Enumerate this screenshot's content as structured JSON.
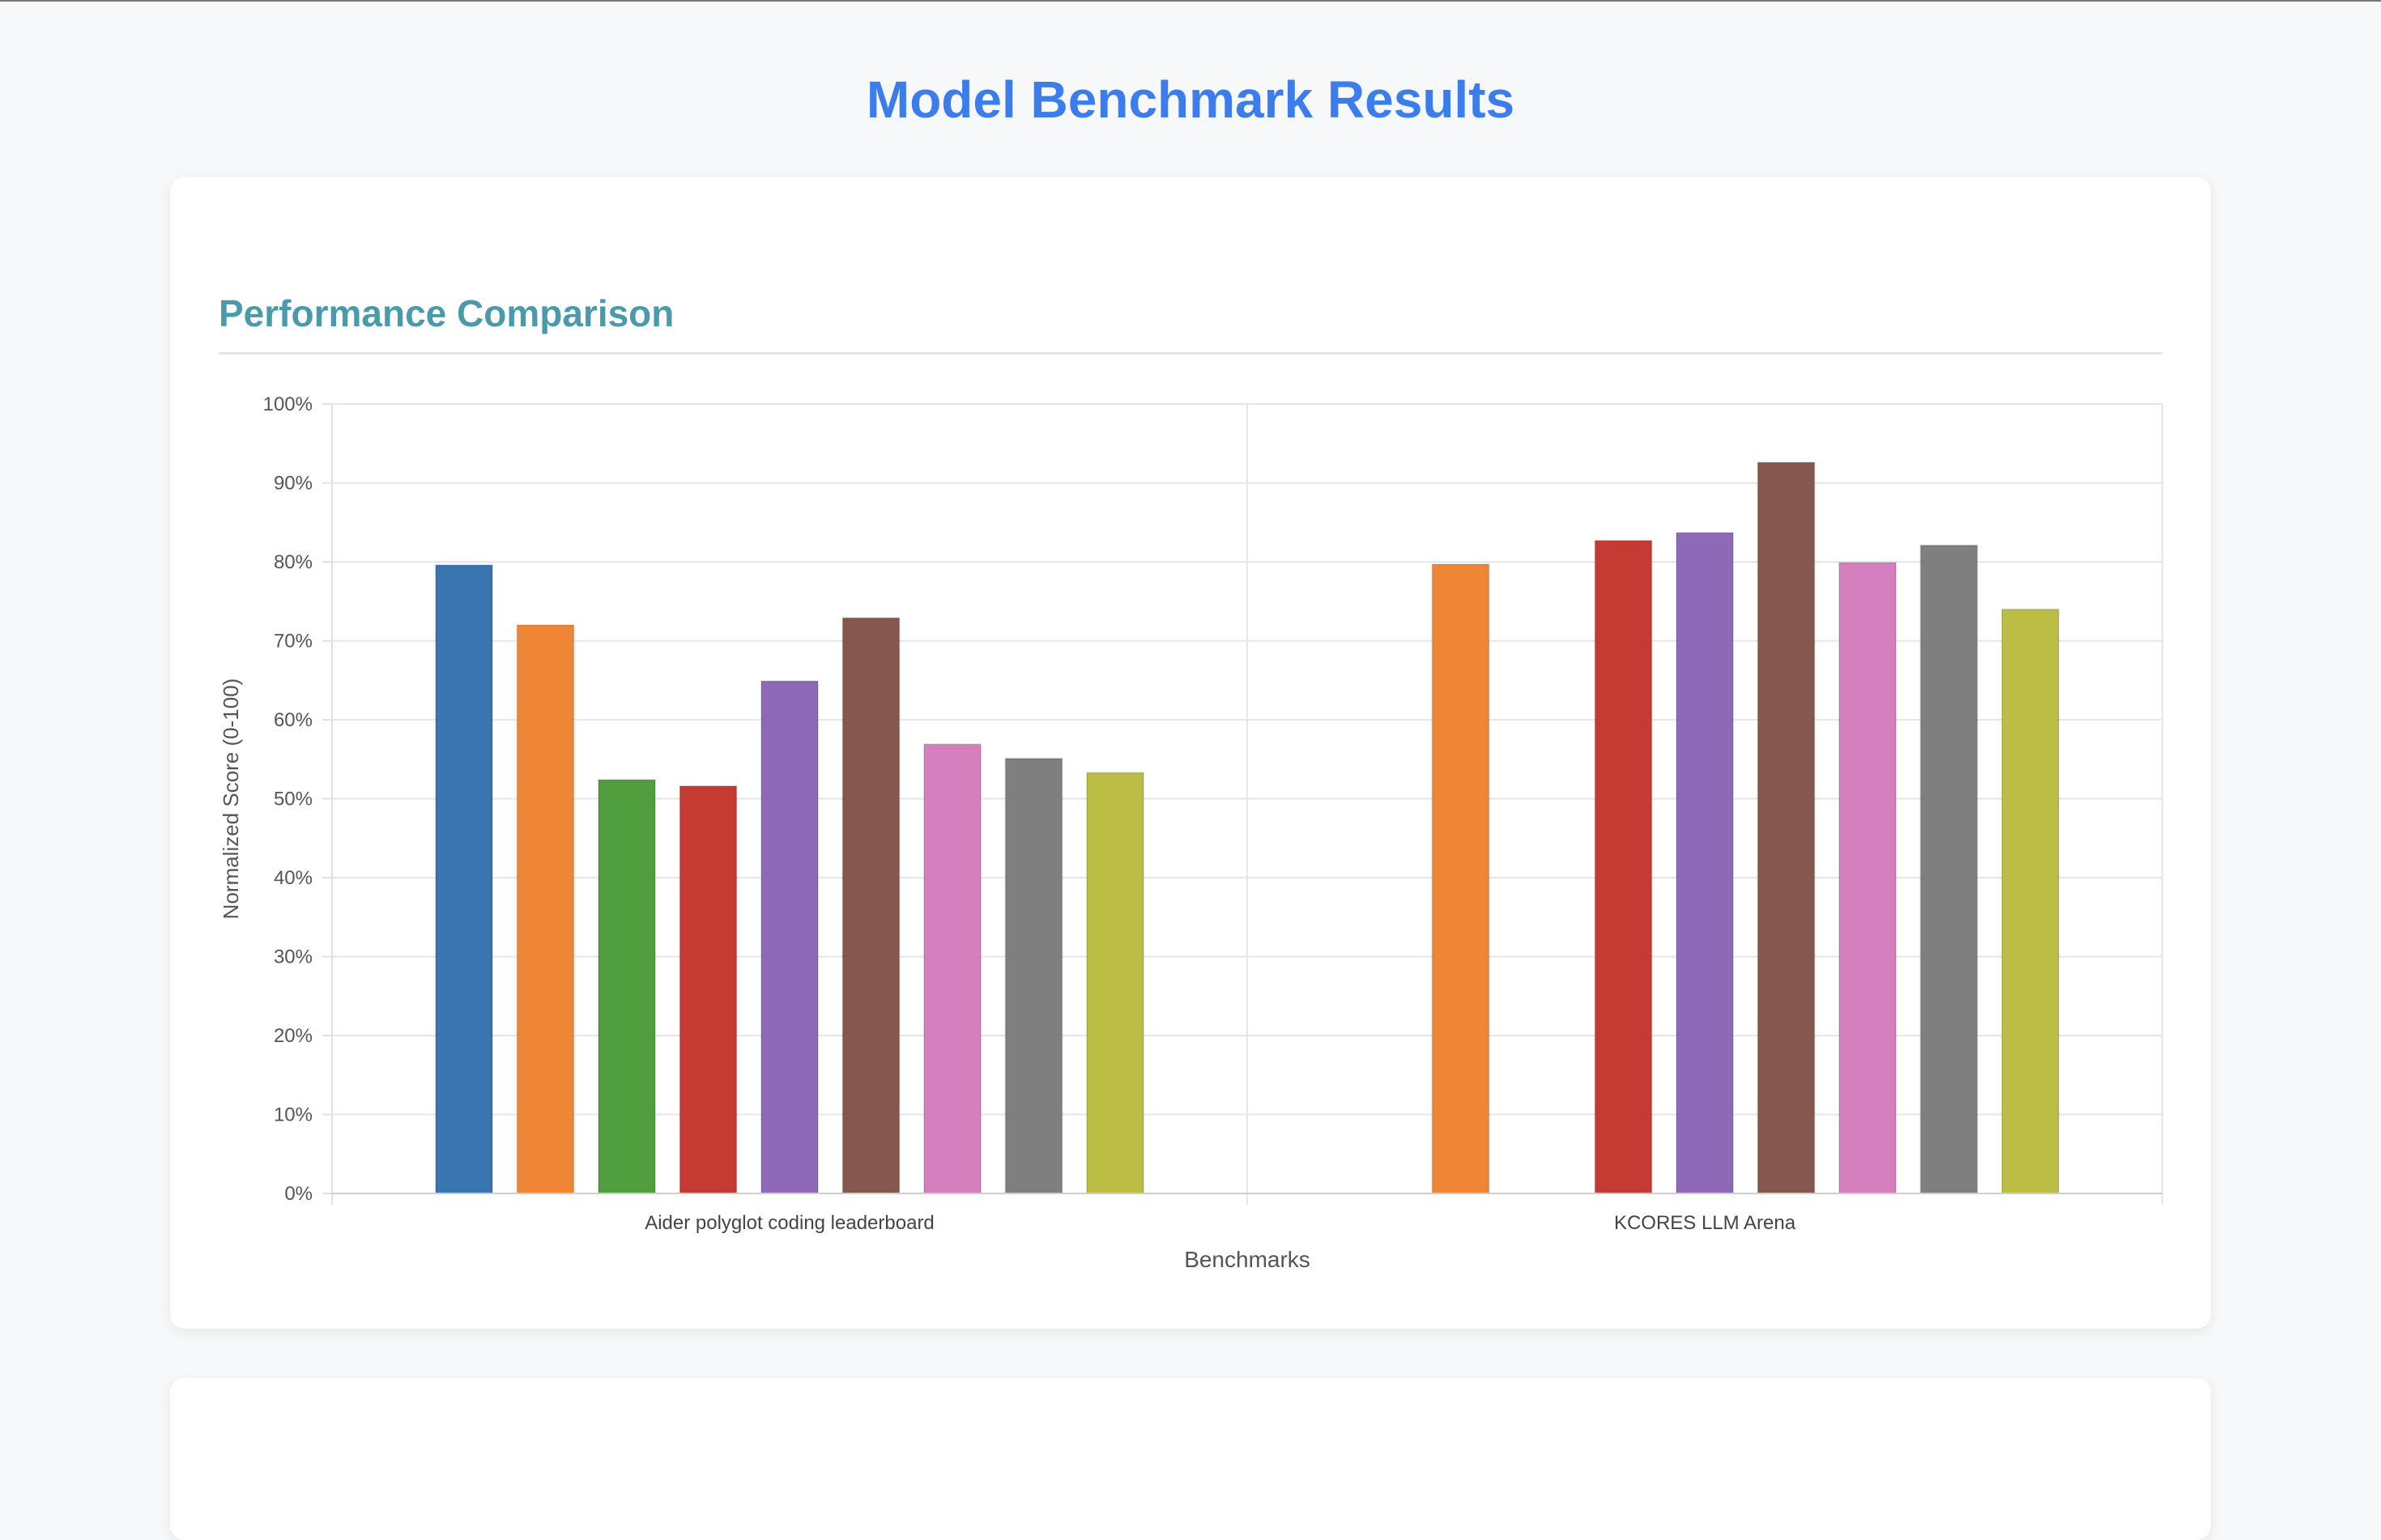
{
  "page": {
    "title": "Model Benchmark Results"
  },
  "section": {
    "title": "Performance Comparison"
  },
  "chart_data": {
    "type": "bar",
    "title": "",
    "xlabel": "Benchmarks",
    "ylabel": "Normalized Score (0-100)",
    "ylim": [
      0,
      100
    ],
    "y_ticks": [
      0,
      10,
      20,
      30,
      40,
      50,
      60,
      70,
      80,
      90,
      100
    ],
    "y_tick_suffix": "%",
    "grid": true,
    "legend": "none",
    "categories": [
      "Aider polyglot coding leaderboard",
      "KCORES LLM Arena"
    ],
    "series": [
      {
        "color": "#3a75b0",
        "values": [
          79.6,
          null
        ]
      },
      {
        "color": "#ef8636",
        "values": [
          72.0,
          79.7
        ]
      },
      {
        "color": "#519e3e",
        "values": [
          52.4,
          null
        ]
      },
      {
        "color": "#c53a32",
        "values": [
          51.6,
          82.7
        ]
      },
      {
        "color": "#8d69b8",
        "values": [
          64.9,
          83.7
        ]
      },
      {
        "color": "#84584e",
        "values": [
          72.9,
          92.6
        ]
      },
      {
        "color": "#d57fbe",
        "values": [
          56.9,
          79.9
        ]
      },
      {
        "color": "#7f7f7f",
        "values": [
          55.1,
          82.1
        ]
      },
      {
        "color": "#bcbd45",
        "values": [
          53.3,
          74.0
        ]
      }
    ]
  }
}
